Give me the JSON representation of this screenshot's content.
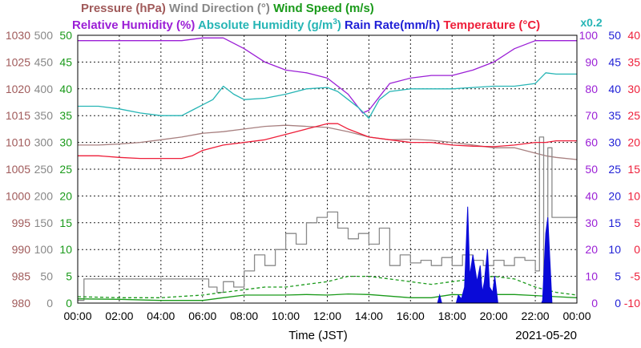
{
  "header": {
    "row1": [
      {
        "text": "Pressure (hPa)",
        "color": "#a05a5a"
      },
      {
        "text": "Wind Direction (°)",
        "color": "#888888"
      },
      {
        "text": "Wind Speed (m/s)",
        "color": "#1a9a1a"
      }
    ],
    "row2": [
      {
        "text": "Relative Humidity (%)",
        "color": "#9b1fd6"
      },
      {
        "text": "Absolute Humidity (g/m",
        "sup": "3",
        "tail": ")",
        "color": "#26b5b5"
      },
      {
        "text": "Rain Rate(mm/h)",
        "color": "#1f1fd6"
      },
      {
        "text": "Temperature (°C)",
        "color": "#ee1f3a"
      }
    ],
    "scale_note": {
      "text": "x0.2",
      "color": "#26b5b5"
    }
  },
  "axes": {
    "xlabel": "Time (JST)",
    "date": "2021-05-20",
    "x_ticks": [
      "00:00",
      "02:00",
      "04:00",
      "06:00",
      "08:00",
      "10:00",
      "12:00",
      "14:00",
      "16:00",
      "18:00",
      "20:00",
      "22:00",
      "00:00"
    ],
    "left": [
      {
        "name": "pressure",
        "color": "#a05a5a",
        "ticks": [
          "1030",
          "1025",
          "1020",
          "1015",
          "1010",
          "1005",
          "1000",
          "995",
          "990",
          "985",
          "980"
        ]
      },
      {
        "name": "wind-direction",
        "color": "#888888",
        "ticks": [
          "500",
          "450",
          "400",
          "350",
          "300",
          "250",
          "200",
          "150",
          "100",
          "50",
          "0"
        ]
      },
      {
        "name": "wind-speed",
        "color": "#1a9a1a",
        "ticks": [
          "50",
          "45",
          "40",
          "35",
          "30",
          "25",
          "20",
          "15",
          "10",
          "5",
          "0"
        ]
      }
    ],
    "right": [
      {
        "name": "humidity",
        "color": "#9b1fd6",
        "ticks": [
          "100",
          "90",
          "80",
          "70",
          "60",
          "50",
          "40",
          "30",
          "20",
          "10",
          "0"
        ]
      },
      {
        "name": "rain-rate",
        "color": "#1f1fd6",
        "ticks": [
          "50",
          "45",
          "40",
          "35",
          "30",
          "25",
          "20",
          "15",
          "10",
          "5",
          "0"
        ]
      },
      {
        "name": "temperature",
        "color": "#ee1f3a",
        "ticks": [
          "40",
          "35",
          "30",
          "25",
          "20",
          "15",
          "10",
          "5",
          "0",
          "-5",
          "-10"
        ]
      }
    ]
  },
  "chart_data": {
    "type": "line",
    "x_range": [
      "00:00",
      "24:00"
    ],
    "grid": true,
    "series": [
      {
        "name": "Pressure (hPa)",
        "axis": "pressure",
        "ylim": [
          980,
          1030
        ],
        "color": "#a88080",
        "points": [
          [
            0,
            1009.5
          ],
          [
            1,
            1009.5
          ],
          [
            2,
            1009.7
          ],
          [
            3,
            1010
          ],
          [
            4,
            1010.5
          ],
          [
            5,
            1011
          ],
          [
            6,
            1011.7
          ],
          [
            7,
            1012
          ],
          [
            8,
            1012.5
          ],
          [
            9,
            1013
          ],
          [
            10,
            1013.2
          ],
          [
            11,
            1013
          ],
          [
            12,
            1012.8
          ],
          [
            13,
            1012
          ],
          [
            14,
            1011
          ],
          [
            15,
            1010.5
          ],
          [
            16,
            1010.6
          ],
          [
            17,
            1010.4
          ],
          [
            18,
            1010
          ],
          [
            19,
            1009.5
          ],
          [
            20,
            1009
          ],
          [
            21,
            1009
          ],
          [
            22,
            1008
          ],
          [
            22.5,
            1007.5
          ],
          [
            23,
            1007.2
          ],
          [
            24,
            1006.8
          ]
        ]
      },
      {
        "name": "Wind Direction (°)",
        "axis": "wind-direction",
        "ylim": [
          0,
          500
        ],
        "color": "#8a8a8a",
        "step": true,
        "points": [
          [
            0,
            5
          ],
          [
            0.3,
            45
          ],
          [
            1,
            45
          ],
          [
            2,
            45
          ],
          [
            3,
            45
          ],
          [
            4,
            45
          ],
          [
            5,
            45
          ],
          [
            6,
            45
          ],
          [
            6.3,
            30
          ],
          [
            6.7,
            20
          ],
          [
            7,
            40
          ],
          [
            7.5,
            30
          ],
          [
            8,
            60
          ],
          [
            8.5,
            90
          ],
          [
            9,
            70
          ],
          [
            9.5,
            100
          ],
          [
            10,
            130
          ],
          [
            10.5,
            110
          ],
          [
            11,
            150
          ],
          [
            11.5,
            160
          ],
          [
            12,
            170
          ],
          [
            12.5,
            140
          ],
          [
            13,
            120
          ],
          [
            13.5,
            130
          ],
          [
            14,
            110
          ],
          [
            14.5,
            140
          ],
          [
            15,
            70
          ],
          [
            15.5,
            90
          ],
          [
            16,
            75
          ],
          [
            16.5,
            80
          ],
          [
            17,
            70
          ],
          [
            17.5,
            85
          ],
          [
            18,
            70
          ],
          [
            18.5,
            90
          ],
          [
            19,
            80
          ],
          [
            19.5,
            70
          ],
          [
            20,
            80
          ],
          [
            20.5,
            70
          ],
          [
            21,
            85
          ],
          [
            21.5,
            80
          ],
          [
            22,
            60
          ],
          [
            22.2,
            310
          ],
          [
            22.4,
            30
          ],
          [
            22.6,
            290
          ],
          [
            22.8,
            160
          ],
          [
            23,
            160
          ],
          [
            23.5,
            160
          ],
          [
            24,
            200
          ]
        ]
      },
      {
        "name": "Wind Speed (m/s)",
        "axis": "wind-speed",
        "ylim": [
          0,
          50
        ],
        "color": "#1a9a1a",
        "points": [
          [
            0,
            0.8
          ],
          [
            2,
            0.7
          ],
          [
            4,
            0.5
          ],
          [
            6,
            0.5
          ],
          [
            7,
            1
          ],
          [
            8,
            1.5
          ],
          [
            9,
            1.5
          ],
          [
            10,
            1.5
          ],
          [
            11,
            1.6
          ],
          [
            12,
            1.5
          ],
          [
            13,
            1.7
          ],
          [
            14,
            1.6
          ],
          [
            15,
            1.3
          ],
          [
            16,
            1.0
          ],
          [
            17,
            1.0
          ],
          [
            18,
            1.6
          ],
          [
            19,
            1.5
          ],
          [
            20,
            1.6
          ],
          [
            21,
            1.6
          ],
          [
            22,
            1.4
          ],
          [
            23,
            1.2
          ],
          [
            24,
            1.0
          ]
        ]
      },
      {
        "name": "Wind Speed gust (m/s)",
        "axis": "wind-speed",
        "ylim": [
          0,
          50
        ],
        "color": "#1a9a1a",
        "dashed": true,
        "points": [
          [
            0,
            1.2
          ],
          [
            2,
            1
          ],
          [
            4,
            1
          ],
          [
            6,
            1.5
          ],
          [
            7,
            2
          ],
          [
            8,
            2.5
          ],
          [
            9,
            3
          ],
          [
            10,
            3
          ],
          [
            11,
            3.5
          ],
          [
            12,
            4
          ],
          [
            13,
            5
          ],
          [
            14,
            5
          ],
          [
            15,
            4.5
          ],
          [
            16,
            4
          ],
          [
            17,
            3.5
          ],
          [
            18,
            4
          ],
          [
            19,
            4.5
          ],
          [
            20,
            5
          ],
          [
            21,
            4.5
          ],
          [
            22,
            3
          ],
          [
            23,
            2
          ],
          [
            24,
            1.5
          ]
        ]
      },
      {
        "name": "Relative Humidity (%)",
        "axis": "humidity",
        "ylim": [
          0,
          100
        ],
        "color": "#9b1fd6",
        "points": [
          [
            0,
            98
          ],
          [
            2,
            98
          ],
          [
            4,
            98
          ],
          [
            5,
            98
          ],
          [
            6,
            99
          ],
          [
            6.5,
            99
          ],
          [
            7,
            99
          ],
          [
            8,
            95
          ],
          [
            9,
            90
          ],
          [
            10,
            87
          ],
          [
            11,
            86
          ],
          [
            12,
            84
          ],
          [
            13,
            78
          ],
          [
            13.7,
            71
          ],
          [
            14,
            72
          ],
          [
            14.5,
            77
          ],
          [
            15,
            82
          ],
          [
            16,
            84
          ],
          [
            17,
            85
          ],
          [
            18,
            85
          ],
          [
            19,
            87
          ],
          [
            20,
            90
          ],
          [
            21,
            95
          ],
          [
            22,
            98
          ],
          [
            22.5,
            98
          ],
          [
            23,
            98
          ],
          [
            24,
            98
          ]
        ]
      },
      {
        "name": "Absolute Humidity x0.2",
        "axis": "humidity",
        "ylim": [
          0,
          100
        ],
        "color": "#26b5b5",
        "points": [
          [
            0,
            73.5
          ],
          [
            1,
            73.5
          ],
          [
            2,
            72.5
          ],
          [
            3,
            71
          ],
          [
            4,
            70
          ],
          [
            5,
            70
          ],
          [
            5.5,
            72
          ],
          [
            6,
            74
          ],
          [
            6.5,
            76
          ],
          [
            7,
            81
          ],
          [
            7.5,
            78
          ],
          [
            8,
            76
          ],
          [
            9,
            76.5
          ],
          [
            10,
            78
          ],
          [
            11,
            80
          ],
          [
            12,
            80.5
          ],
          [
            12.5,
            79
          ],
          [
            13,
            76
          ],
          [
            13.5,
            73
          ],
          [
            14,
            69
          ],
          [
            14.5,
            76
          ],
          [
            15,
            79
          ],
          [
            16,
            80
          ],
          [
            17,
            80
          ],
          [
            18,
            80
          ],
          [
            19,
            80.5
          ],
          [
            20,
            81
          ],
          [
            21,
            81
          ],
          [
            22,
            82
          ],
          [
            22.5,
            86
          ],
          [
            23,
            85.5
          ],
          [
            24,
            85.5
          ]
        ]
      },
      {
        "name": "Temperature (°C)",
        "axis": "temperature",
        "ylim": [
          -10,
          40
        ],
        "color": "#ee1f3a",
        "points": [
          [
            0,
            17.5
          ],
          [
            1,
            17.5
          ],
          [
            2,
            17.2
          ],
          [
            3,
            17
          ],
          [
            4,
            17
          ],
          [
            5,
            17
          ],
          [
            5.5,
            17.5
          ],
          [
            6,
            18.5
          ],
          [
            7,
            19.5
          ],
          [
            8,
            20
          ],
          [
            9,
            20.5
          ],
          [
            10,
            21.5
          ],
          [
            11,
            22.5
          ],
          [
            12,
            23.5
          ],
          [
            12.5,
            23.5
          ],
          [
            13,
            22.5
          ],
          [
            14,
            21
          ],
          [
            15,
            20.5
          ],
          [
            16,
            20
          ],
          [
            17,
            20
          ],
          [
            18,
            19.5
          ],
          [
            19,
            19.3
          ],
          [
            20,
            19.2
          ],
          [
            21,
            19.5
          ],
          [
            22,
            20
          ],
          [
            22.5,
            20
          ],
          [
            23,
            20.3
          ],
          [
            24,
            20.3
          ]
        ]
      },
      {
        "name": "Rain Rate (mm/h)",
        "axis": "rain-rate",
        "ylim": [
          0,
          50
        ],
        "color": "#0a0ad8",
        "fill": true,
        "points": [
          [
            0,
            0
          ],
          [
            17.3,
            0
          ],
          [
            17.4,
            1.5
          ],
          [
            17.5,
            0
          ],
          [
            18.2,
            0
          ],
          [
            18.3,
            1.5
          ],
          [
            18.45,
            0.8
          ],
          [
            18.6,
            3
          ],
          [
            18.75,
            18
          ],
          [
            18.85,
            5
          ],
          [
            19.0,
            9
          ],
          [
            19.2,
            4
          ],
          [
            19.35,
            7
          ],
          [
            19.45,
            2
          ],
          [
            19.55,
            4
          ],
          [
            19.7,
            10
          ],
          [
            19.8,
            3
          ],
          [
            19.95,
            2
          ],
          [
            20.05,
            5
          ],
          [
            20.2,
            0
          ],
          [
            22.3,
            0
          ],
          [
            22.35,
            0.5
          ],
          [
            22.5,
            13
          ],
          [
            22.6,
            16
          ],
          [
            22.7,
            8
          ],
          [
            22.8,
            0
          ],
          [
            24,
            0
          ]
        ]
      }
    ]
  }
}
